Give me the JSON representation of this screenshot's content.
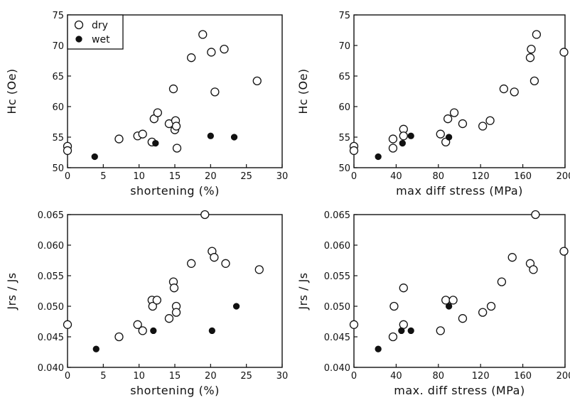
{
  "chart_data": [
    {
      "type": "scatter",
      "xlabel": "shortening (%)",
      "ylabel": "Hc (Oe)",
      "xlim": [
        0,
        30
      ],
      "ylim": [
        50,
        75
      ],
      "x_ticks": [
        0,
        5,
        10,
        15,
        20,
        25,
        30
      ],
      "y_ticks": [
        50,
        55,
        60,
        65,
        70,
        75
      ],
      "legend": {
        "position": "top-left",
        "entries": [
          "dry",
          "wet"
        ]
      },
      "series": [
        {
          "name": "dry",
          "marker": "open-circle",
          "x": [
            0,
            0,
            7.2,
            9.8,
            10.5,
            11.8,
            12.1,
            12.6,
            14.2,
            14.8,
            15.0,
            15.1,
            15.2,
            15.3,
            17.3,
            18.9,
            20.1,
            20.6,
            21.9,
            26.5
          ],
          "y": [
            53.5,
            52.8,
            54.7,
            55.2,
            55.5,
            54.2,
            58.0,
            59.0,
            57.2,
            62.9,
            56.2,
            57.7,
            56.8,
            53.2,
            68.0,
            71.8,
            68.9,
            62.4,
            69.4,
            64.2
          ]
        },
        {
          "name": "wet",
          "marker": "filled-circle",
          "x": [
            3.8,
            12.3,
            20.0,
            23.3
          ],
          "y": [
            51.8,
            54.0,
            55.2,
            55.0
          ]
        }
      ]
    },
    {
      "type": "scatter",
      "xlabel": "max  diff  stress  (MPa)",
      "ylabel": "Hc (Oe)",
      "xlim": [
        0,
        200
      ],
      "ylim": [
        50,
        75
      ],
      "x_ticks": [
        0,
        40,
        80,
        120,
        160,
        200
      ],
      "y_ticks": [
        50,
        55,
        60,
        65,
        70,
        75
      ],
      "series": [
        {
          "name": "dry",
          "marker": "open-circle",
          "x": [
            0,
            0,
            37,
            37,
            47,
            47,
            82,
            87,
            89,
            95,
            103,
            122,
            129,
            142,
            152,
            167,
            168,
            171,
            173,
            199
          ],
          "y": [
            53.5,
            52.8,
            54.7,
            53.2,
            56.3,
            55.2,
            55.5,
            54.2,
            58.0,
            59.0,
            57.2,
            56.8,
            57.7,
            62.9,
            62.4,
            68.0,
            69.4,
            64.2,
            71.8,
            68.9
          ]
        },
        {
          "name": "wet",
          "marker": "filled-circle",
          "x": [
            23,
            46,
            54,
            90
          ],
          "y": [
            51.8,
            54.0,
            55.2,
            55.0
          ]
        }
      ]
    },
    {
      "type": "scatter",
      "xlabel": "shortening  (%)",
      "ylabel": "Jrs / Js",
      "xlim": [
        0,
        30
      ],
      "ylim": [
        0.04,
        0.065
      ],
      "x_ticks": [
        0,
        5,
        10,
        15,
        20,
        25,
        30
      ],
      "y_ticks": [
        0.04,
        0.045,
        0.05,
        0.055,
        0.06,
        0.065
      ],
      "y_tick_labels": [
        "0.040",
        "0.045",
        "0.050",
        "0.055",
        "0.060",
        "0.065"
      ],
      "series": [
        {
          "name": "dry",
          "marker": "open-circle",
          "x": [
            0,
            7.2,
            9.8,
            10.5,
            11.8,
            11.9,
            12.5,
            14.2,
            14.8,
            14.9,
            15.2,
            15.2,
            17.3,
            19.2,
            20.2,
            20.5,
            22.1,
            26.8
          ],
          "y": [
            0.047,
            0.045,
            0.047,
            0.046,
            0.051,
            0.05,
            0.051,
            0.048,
            0.054,
            0.053,
            0.05,
            0.049,
            0.057,
            0.065,
            0.059,
            0.058,
            0.057,
            0.056
          ]
        },
        {
          "name": "wet",
          "marker": "filled-circle",
          "x": [
            4.0,
            12.0,
            20.2,
            23.6
          ],
          "y": [
            0.043,
            0.046,
            0.046,
            0.05
          ]
        }
      ]
    },
    {
      "type": "scatter",
      "xlabel": "max.  diff  stress  (MPa)",
      "ylabel": "Jrs / Js",
      "xlim": [
        0,
        200
      ],
      "ylim": [
        0.04,
        0.065
      ],
      "x_ticks": [
        0,
        40,
        80,
        120,
        160,
        200
      ],
      "y_tick_labels": [
        "0.040",
        "0.045",
        "0.050",
        "0.055",
        "0.060",
        "0.065"
      ],
      "y_ticks": [
        0.04,
        0.045,
        0.05,
        0.055,
        0.06,
        0.065
      ],
      "series": [
        {
          "name": "dry",
          "marker": "open-circle",
          "x": [
            0,
            37,
            38,
            47,
            47,
            82,
            87,
            94,
            103,
            122,
            130,
            140,
            150,
            167,
            170,
            172,
            199
          ],
          "y": [
            0.047,
            0.045,
            0.05,
            0.053,
            0.047,
            0.046,
            0.051,
            0.051,
            0.048,
            0.049,
            0.05,
            0.054,
            0.058,
            0.057,
            0.056,
            0.065,
            0.059
          ]
        },
        {
          "name": "wet",
          "marker": "filled-circle",
          "x": [
            23,
            45,
            54,
            90
          ],
          "y": [
            0.043,
            0.046,
            0.046,
            0.05
          ]
        }
      ]
    }
  ]
}
